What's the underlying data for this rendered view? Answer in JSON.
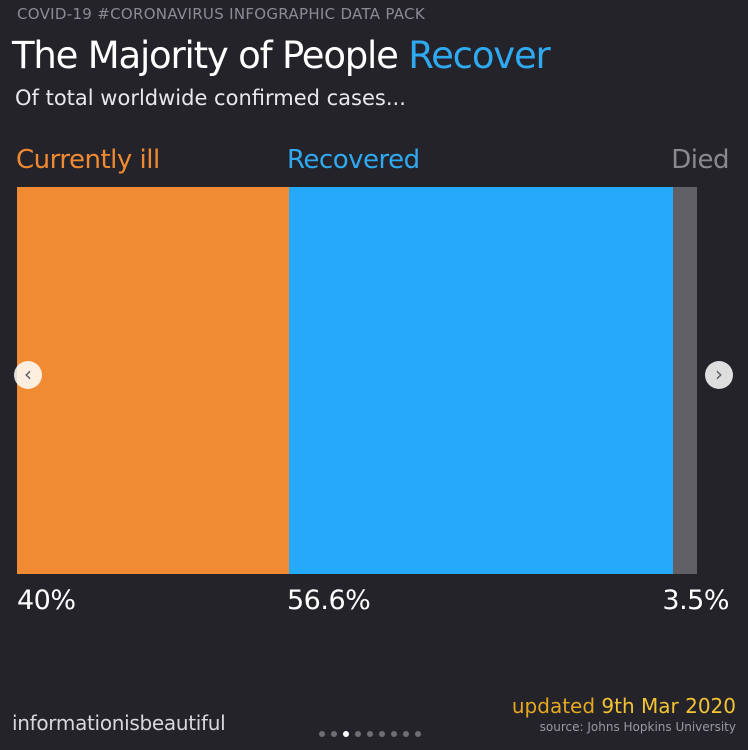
{
  "header": {
    "kicker": "COVID-19 #CORONAVIRUS INFOGRAPHIC DATA PACK",
    "title_main": "The Majority of People",
    "title_accent": "Recover",
    "subtitle": "Of total worldwide confirmed cases..."
  },
  "chart_data": {
    "type": "bar",
    "orientation": "horizontal-stacked",
    "categories": [
      "Currently ill",
      "Recovered",
      "Died"
    ],
    "values": [
      40,
      56.6,
      3.5
    ],
    "value_labels": [
      "40%",
      "56.6%",
      "3.5%"
    ],
    "colors": [
      "#f08a33",
      "#25aafb",
      "#606064"
    ]
  },
  "footer": {
    "brand": "informationisbeautiful",
    "updated_prefix": "updated",
    "updated_date": "9th Mar 2020",
    "source": "source: Johns Hopkins University",
    "pagination": {
      "total": 9,
      "active_index": 2
    }
  },
  "nav": {
    "prev_icon": "chevron-left-icon",
    "next_icon": "chevron-right-icon",
    "prev_glyph": "‹",
    "next_glyph": "›"
  }
}
